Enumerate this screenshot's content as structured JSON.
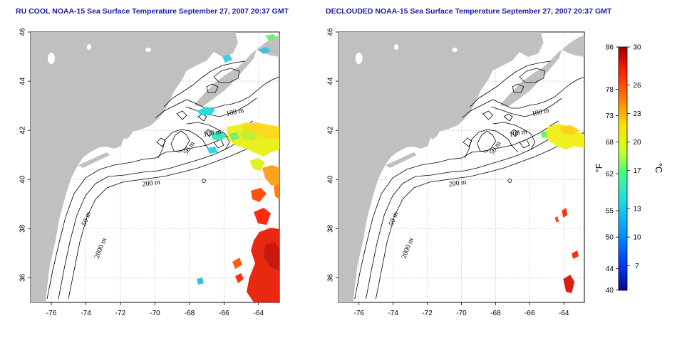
{
  "panels": [
    {
      "title": "RU COOL NOAA-15 Sea Surface Temperature September 27, 2007 20:37 GMT",
      "contour_labels": [
        "100 m",
        "100 m",
        "50 m",
        "200 m",
        "50 m",
        "2000 m"
      ]
    },
    {
      "title": "DECLOUDED NOAA-15 Sea Surface Temperature September 27, 2007 20:37 GMT",
      "contour_labels": [
        "100 m",
        "100 m",
        "50 m",
        "200 m",
        "50 m",
        "2000 m"
      ]
    }
  ],
  "axes": {
    "lon_ticks": [
      -76,
      -74,
      -72,
      -70,
      -68,
      -66,
      -64
    ],
    "lat_ticks": [
      36,
      38,
      40,
      42,
      44,
      46
    ],
    "lon_range": [
      -77.2,
      -62.8
    ],
    "lat_range": [
      35,
      46
    ]
  },
  "colorbar": {
    "fahrenheit_ticks": [
      86,
      78,
      73,
      68,
      62,
      55,
      50,
      44,
      40
    ],
    "celsius_ticks": [
      30,
      26,
      23,
      20,
      17,
      13,
      10,
      7
    ],
    "unit_f": "°F",
    "unit_c": "°C",
    "range_c": [
      4.4,
      30
    ],
    "colors": [
      "#0a0a90",
      "#0040ff",
      "#00a0ff",
      "#20e0e0",
      "#40ff80",
      "#d0ff20",
      "#ffe000",
      "#ff8000",
      "#ff2000",
      "#a00000"
    ]
  },
  "land_color": "#c0c0c0"
}
